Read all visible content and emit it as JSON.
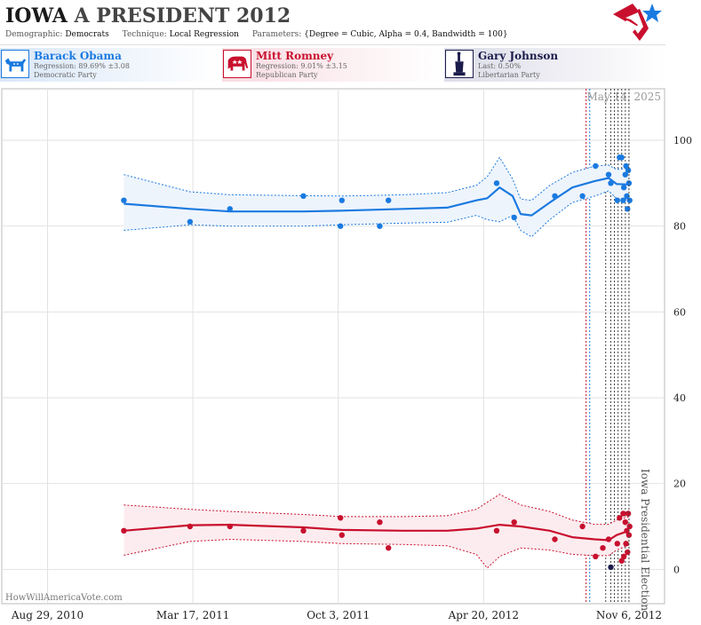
{
  "header": {
    "state": "IOWA",
    "race": "A PRESIDENT 2012",
    "demographic_label": "Demographic:",
    "demographic": "Democrats",
    "technique_label": "Technique:",
    "technique": "Local Regression",
    "parameters_label": "Parameters:",
    "parameters": "{Degree = Cubic, Alpha = 0.4, Bandwidth = 100}"
  },
  "candidates": [
    {
      "name": "Barack Obama",
      "stat": "Regression: 89.69% ±3.08",
      "party": "Democratic Party",
      "color": "#1a7ae0",
      "bg": "#e6f0fb",
      "icon": "donkey-icon"
    },
    {
      "name": "Mitt Romney",
      "stat": "Regression: 9.01% ±3.15",
      "party": "Republican Party",
      "color": "#c8102e",
      "bg": "#fbe6ea",
      "icon": "elephant-icon"
    },
    {
      "name": "Gary Johnson",
      "stat": "Last: 0.50%",
      "party": "Libertarian Party",
      "color": "#1c1c4c",
      "bg": "#ebebf2",
      "icon": "statue-of-liberty-icon"
    }
  ],
  "credit": "HowWillAmericaVote.com",
  "chart_data": {
    "type": "scatter",
    "date_annotation": "May 14, 2025",
    "event_label": "Iowa Presidential Election",
    "event_date": "2012-11-06",
    "ylim": [
      -8,
      112
    ],
    "yticks": [
      0,
      20,
      40,
      60,
      80,
      100
    ],
    "xlim": [
      "2010-06-27",
      "2012-12-25"
    ],
    "xticks": [
      {
        "date": "2010-08-29",
        "label": "Aug 29, 2010"
      },
      {
        "date": "2011-03-17",
        "label": "Mar 17, 2011"
      },
      {
        "date": "2011-10-03",
        "label": "Oct 3, 2011"
      },
      {
        "date": "2012-04-20",
        "label": "Apr 20, 2012"
      },
      {
        "date": "2012-11-06",
        "label": "Nov 6, 2012"
      }
    ],
    "grid": true,
    "poll_lines": [
      {
        "date": "2012-09-08",
        "color": "#c8102e"
      },
      {
        "date": "2012-09-13",
        "color": "#1a7ae0"
      },
      {
        "date": "2012-10-05",
        "color": "#444444"
      },
      {
        "date": "2012-10-12",
        "color": "#444444"
      },
      {
        "date": "2012-10-17",
        "color": "#444444"
      },
      {
        "date": "2012-10-22",
        "color": "#444444"
      },
      {
        "date": "2012-10-27",
        "color": "#444444"
      },
      {
        "date": "2012-11-01",
        "color": "#444444"
      }
    ],
    "series": [
      {
        "name": "Barack Obama",
        "color": "#1a7ae0",
        "band_fill": "#eef4fc",
        "points": [
          [
            "2010-12-12",
            86
          ],
          [
            "2011-03-13",
            81
          ],
          [
            "2011-05-07",
            84
          ],
          [
            "2011-08-16",
            87
          ],
          [
            "2011-10-06",
            80
          ],
          [
            "2011-10-08",
            86
          ],
          [
            "2011-11-29",
            80
          ],
          [
            "2011-12-11",
            86
          ],
          [
            "2012-05-08",
            90
          ],
          [
            "2012-06-01",
            82
          ],
          [
            "2012-07-27",
            87
          ],
          [
            "2012-09-03",
            87
          ],
          [
            "2012-09-21",
            94
          ],
          [
            "2012-10-09",
            92
          ],
          [
            "2012-10-12",
            90
          ],
          [
            "2012-10-21",
            86
          ],
          [
            "2012-10-24",
            96
          ],
          [
            "2012-10-27",
            96
          ],
          [
            "2012-10-29",
            86
          ],
          [
            "2012-10-30",
            89
          ],
          [
            "2012-11-01",
            92
          ],
          [
            "2012-11-02",
            94
          ],
          [
            "2012-11-03",
            87
          ],
          [
            "2012-11-04",
            84
          ],
          [
            "2012-11-05",
            93
          ],
          [
            "2012-11-06",
            90
          ],
          [
            "2012-11-07",
            86
          ]
        ],
        "fit": [
          [
            "2010-12-12",
            85.2
          ],
          [
            "2011-03-13",
            84
          ],
          [
            "2011-05-07",
            83.4
          ],
          [
            "2011-08-16",
            83.4
          ],
          [
            "2011-10-08",
            83.6
          ],
          [
            "2012-01-01",
            84
          ],
          [
            "2012-03-01",
            84.3
          ],
          [
            "2012-04-10",
            86
          ],
          [
            "2012-04-25",
            86.5
          ],
          [
            "2012-05-12",
            89
          ],
          [
            "2012-05-30",
            87
          ],
          [
            "2012-06-10",
            82.8
          ],
          [
            "2012-06-25",
            82.5
          ],
          [
            "2012-07-20",
            85.5
          ],
          [
            "2012-08-20",
            89
          ],
          [
            "2012-09-20",
            90.5
          ],
          [
            "2012-10-09",
            91.2
          ],
          [
            "2012-10-20",
            89.8
          ],
          [
            "2012-11-06",
            89.7
          ]
        ],
        "upper": [
          [
            "2010-12-12",
            92
          ],
          [
            "2011-03-13",
            88
          ],
          [
            "2011-05-07",
            87.3
          ],
          [
            "2011-08-16",
            87.1
          ],
          [
            "2011-10-08",
            87
          ],
          [
            "2012-01-01",
            87.3
          ],
          [
            "2012-03-01",
            87.8
          ],
          [
            "2012-04-10",
            89.5
          ],
          [
            "2012-04-25",
            91.5
          ],
          [
            "2012-05-12",
            96
          ],
          [
            "2012-05-30",
            91
          ],
          [
            "2012-06-10",
            86.3
          ],
          [
            "2012-06-25",
            86
          ],
          [
            "2012-07-20",
            89.5
          ],
          [
            "2012-08-20",
            92.5
          ],
          [
            "2012-09-20",
            94
          ],
          [
            "2012-10-09",
            94.2
          ],
          [
            "2012-10-20",
            93.2
          ],
          [
            "2012-11-06",
            93.5
          ]
        ],
        "lower": [
          [
            "2010-12-12",
            79
          ],
          [
            "2011-03-13",
            80.3
          ],
          [
            "2011-05-07",
            80
          ],
          [
            "2011-08-16",
            80
          ],
          [
            "2011-10-08",
            80.3
          ],
          [
            "2012-01-01",
            80.7
          ],
          [
            "2012-03-01",
            80.9
          ],
          [
            "2012-04-10",
            82.5
          ],
          [
            "2012-04-25",
            81.5
          ],
          [
            "2012-05-12",
            81
          ],
          [
            "2012-05-30",
            82.5
          ],
          [
            "2012-06-10",
            79
          ],
          [
            "2012-06-25",
            77.5
          ],
          [
            "2012-07-20",
            81.5
          ],
          [
            "2012-08-20",
            85.5
          ],
          [
            "2012-09-20",
            87
          ],
          [
            "2012-10-09",
            88.2
          ],
          [
            "2012-10-20",
            86.4
          ],
          [
            "2012-11-06",
            86.3
          ]
        ]
      },
      {
        "name": "Mitt Romney",
        "color": "#c8102e",
        "band_fill": "#fcecef",
        "points": [
          [
            "2010-12-12",
            9
          ],
          [
            "2011-03-13",
            10
          ],
          [
            "2011-05-07",
            10
          ],
          [
            "2011-08-16",
            9
          ],
          [
            "2011-10-06",
            12
          ],
          [
            "2011-10-08",
            8
          ],
          [
            "2011-11-29",
            11
          ],
          [
            "2011-12-11",
            5
          ],
          [
            "2012-05-08",
            9
          ],
          [
            "2012-06-01",
            11
          ],
          [
            "2012-07-27",
            7
          ],
          [
            "2012-09-03",
            10
          ],
          [
            "2012-09-21",
            3
          ],
          [
            "2012-10-01",
            5
          ],
          [
            "2012-10-09",
            7
          ],
          [
            "2012-10-21",
            6
          ],
          [
            "2012-10-24",
            12
          ],
          [
            "2012-10-27",
            2
          ],
          [
            "2012-10-29",
            13
          ],
          [
            "2012-10-30",
            3
          ],
          [
            "2012-11-01",
            11
          ],
          [
            "2012-11-02",
            6
          ],
          [
            "2012-11-03",
            9
          ],
          [
            "2012-11-04",
            4
          ],
          [
            "2012-11-05",
            13
          ],
          [
            "2012-11-06",
            8
          ],
          [
            "2012-11-07",
            10
          ]
        ],
        "fit": [
          [
            "2010-12-12",
            9
          ],
          [
            "2011-03-13",
            10.3
          ],
          [
            "2011-05-07",
            10.4
          ],
          [
            "2011-08-16",
            9.8
          ],
          [
            "2011-10-08",
            9.2
          ],
          [
            "2012-01-01",
            9
          ],
          [
            "2012-03-01",
            9
          ],
          [
            "2012-04-10",
            9.5
          ],
          [
            "2012-05-12",
            10.4
          ],
          [
            "2012-06-10",
            10
          ],
          [
            "2012-07-20",
            9
          ],
          [
            "2012-08-20",
            7.5
          ],
          [
            "2012-09-20",
            7
          ],
          [
            "2012-10-09",
            6.8
          ],
          [
            "2012-10-20",
            8
          ],
          [
            "2012-11-06",
            9
          ]
        ],
        "upper": [
          [
            "2010-12-12",
            15
          ],
          [
            "2011-03-13",
            14
          ],
          [
            "2011-05-07",
            13.5
          ],
          [
            "2011-08-16",
            12.8
          ],
          [
            "2011-10-08",
            12.3
          ],
          [
            "2012-01-01",
            12.3
          ],
          [
            "2012-03-01",
            12.5
          ],
          [
            "2012-04-10",
            14
          ],
          [
            "2012-05-12",
            17.5
          ],
          [
            "2012-06-10",
            15
          ],
          [
            "2012-07-20",
            13.5
          ],
          [
            "2012-08-20",
            11.5
          ],
          [
            "2012-09-20",
            10.5
          ],
          [
            "2012-10-09",
            10.5
          ],
          [
            "2012-10-20",
            11.5
          ],
          [
            "2012-11-06",
            12.3
          ]
        ],
        "lower": [
          [
            "2010-12-12",
            3.3
          ],
          [
            "2011-03-13",
            6.5
          ],
          [
            "2011-05-07",
            7
          ],
          [
            "2011-08-16",
            6.5
          ],
          [
            "2011-10-08",
            6
          ],
          [
            "2012-01-01",
            5.8
          ],
          [
            "2012-03-01",
            5.5
          ],
          [
            "2012-04-10",
            3.5
          ],
          [
            "2012-04-25",
            0.3
          ],
          [
            "2012-05-12",
            3
          ],
          [
            "2012-06-10",
            5
          ],
          [
            "2012-07-20",
            4.5
          ],
          [
            "2012-08-20",
            3.5
          ],
          [
            "2012-09-20",
            3.2
          ],
          [
            "2012-10-09",
            3.2
          ],
          [
            "2012-10-20",
            4.5
          ],
          [
            "2012-11-06",
            5.7
          ]
        ]
      },
      {
        "name": "Gary Johnson",
        "color": "#1c1c4c",
        "points": [
          [
            "2012-10-12",
            0.5
          ]
        ]
      }
    ]
  }
}
